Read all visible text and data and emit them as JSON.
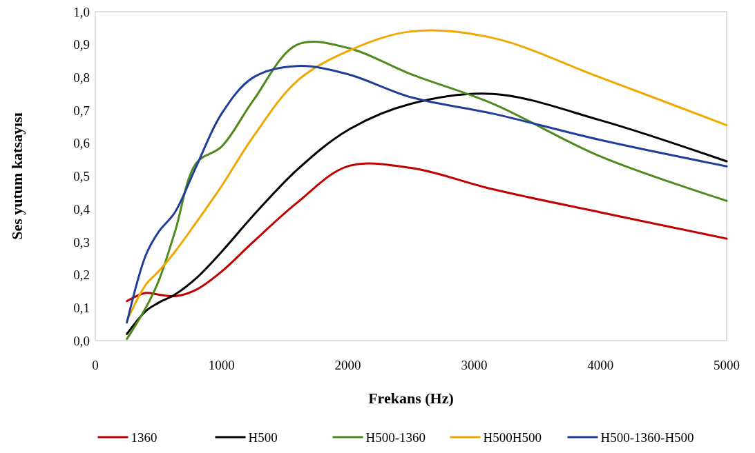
{
  "chart_data": {
    "type": "line",
    "xlabel": "Frekans (Hz)",
    "ylabel": "Ses yutum katsayısı",
    "x": [
      250,
      400,
      500,
      630,
      800,
      1000,
      1250,
      1600,
      2000,
      2500,
      3150,
      4000,
      5000
    ],
    "xlim": [
      0,
      5000
    ],
    "xticks": [
      0,
      1000,
      2000,
      3000,
      4000,
      5000
    ],
    "ylim": [
      0,
      1
    ],
    "yticks": [
      {
        "value": 0,
        "label": "0,0"
      },
      {
        "value": 0.1,
        "label": "0,1"
      },
      {
        "value": 0.2,
        "label": "0,2"
      },
      {
        "value": 0.3,
        "label": "0,3"
      },
      {
        "value": 0.4,
        "label": "0,4"
      },
      {
        "value": 0.5,
        "label": "0,5"
      },
      {
        "value": 0.6,
        "label": "0,6"
      },
      {
        "value": 0.7,
        "label": "0,7"
      },
      {
        "value": 0.8,
        "label": "0,8"
      },
      {
        "value": 0.9,
        "label": "0,9"
      },
      {
        "value": 1,
        "label": "1,0"
      }
    ],
    "grid": false,
    "legend": "bottom",
    "marker": "none",
    "line_style": "solid",
    "series": [
      {
        "name": "1360",
        "color": "#c00000",
        "values": [
          0.12,
          0.145,
          0.14,
          0.135,
          0.155,
          0.21,
          0.3,
          0.42,
          0.53,
          0.525,
          0.46,
          0.39,
          0.31
        ]
      },
      {
        "name": "H500",
        "color": "#000000",
        "values": [
          0.02,
          0.09,
          0.115,
          0.14,
          0.19,
          0.27,
          0.38,
          0.52,
          0.64,
          0.72,
          0.75,
          0.67,
          0.545
        ]
      },
      {
        "name": "H500-1360",
        "color": "#4e8a1e",
        "values": [
          0.005,
          0.1,
          0.18,
          0.33,
          0.54,
          0.59,
          0.73,
          0.9,
          0.89,
          0.81,
          0.72,
          0.56,
          0.425
        ]
      },
      {
        "name": "H500H500",
        "color": "#f0a800",
        "values": [
          0.06,
          0.17,
          0.21,
          0.27,
          0.36,
          0.47,
          0.62,
          0.79,
          0.88,
          0.94,
          0.92,
          0.8,
          0.655
        ]
      },
      {
        "name": "H500-1360-H500",
        "color": "#1f3d99",
        "values": [
          0.055,
          0.26,
          0.33,
          0.39,
          0.53,
          0.69,
          0.8,
          0.835,
          0.81,
          0.74,
          0.69,
          0.61,
          0.53
        ]
      }
    ]
  }
}
